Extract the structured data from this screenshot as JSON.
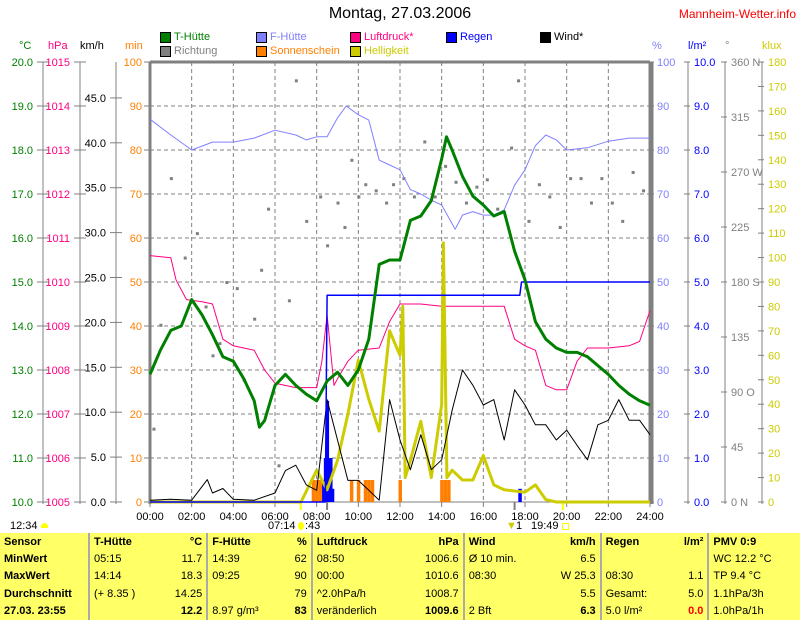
{
  "header": {
    "title": "Montag, 27.03.2006",
    "site": "Mannheim-Wetter.info"
  },
  "axis_headers": {
    "temp": "°C",
    "pressure": "hPa",
    "wind": "km/h",
    "sun": "min",
    "humidity": "%",
    "rain": "l/m²",
    "direction": "°",
    "light": "klux"
  },
  "legend": [
    {
      "label": "T-Hütte",
      "color": "#008000"
    },
    {
      "label": "Richtung",
      "color": "#808080"
    },
    {
      "label": "F-Hütte",
      "color": "#8080ff"
    },
    {
      "label": "Sonnenschein",
      "color": "#ff8000"
    },
    {
      "label": "Luftdruck*",
      "color": "#ff0080"
    },
    {
      "label": "Helligkeit",
      "color": "#cccc00"
    },
    {
      "label": "Regen",
      "color": "#0000ff"
    },
    {
      "label": "Wind*",
      "color": "#000000"
    }
  ],
  "colors": {
    "temp": "#008000",
    "pressure": "#ff0080",
    "wind": "#000000",
    "sun": "#ff8000",
    "humidity": "#8080ff",
    "rain": "#0000ff",
    "direction": "#808080",
    "light": "#cccc00",
    "table_bg": "#ffff66"
  },
  "astro": {
    "moonrise": "12:34",
    "sunrise": "07:14",
    "sunrise_suffix": ":43",
    "moon_mark": "1",
    "sunset": "19:49"
  },
  "chart_data": {
    "type": "line",
    "title": "Montag, 27.03.2006",
    "grid": true,
    "x_ticks": [
      "00:00",
      "02:00",
      "04:00",
      "06:00",
      "08:00",
      "10:00",
      "12:00",
      "14:00",
      "16:00",
      "18:00",
      "20:00",
      "22:00",
      "24:00"
    ],
    "xlim": [
      "00:00",
      "24:00"
    ],
    "axes": {
      "temp": {
        "label": "°C",
        "range": [
          10,
          20
        ],
        "ticks": [
          "10.0",
          "11.0",
          "12.0",
          "13.0",
          "14.0",
          "15.0",
          "16.0",
          "17.0",
          "18.0",
          "19.0",
          "20.0"
        ]
      },
      "pressure": {
        "label": "hPa",
        "range": [
          1005,
          1015
        ],
        "ticks": [
          "1005",
          "1006",
          "1007",
          "1008",
          "1009",
          "1010",
          "1011",
          "1012",
          "1013",
          "1014",
          "1015"
        ]
      },
      "wind": {
        "label": "km/h",
        "range": [
          0,
          49
        ],
        "ticks": [
          "0.0",
          "5.0",
          "10.0",
          "15.0",
          "20.0",
          "25.0",
          "30.0",
          "35.0",
          "40.0",
          "45.0"
        ]
      },
      "sun": {
        "label": "min",
        "range": [
          0,
          100
        ],
        "ticks": [
          "0",
          "10",
          "20",
          "30",
          "40",
          "50",
          "60",
          "70",
          "80",
          "90",
          "100"
        ]
      },
      "humidity": {
        "label": "%",
        "range": [
          0,
          100
        ],
        "ticks": [
          "0",
          "10",
          "20",
          "30",
          "40",
          "50",
          "60",
          "70",
          "80",
          "90",
          "100"
        ]
      },
      "rain": {
        "label": "l/m²",
        "range": [
          0,
          10
        ],
        "ticks": [
          "0.0",
          "1.0",
          "2.0",
          "3.0",
          "4.0",
          "5.0",
          "6.0",
          "7.0",
          "8.0",
          "9.0",
          "10.0"
        ]
      },
      "direction": {
        "label": "°",
        "range": [
          0,
          360
        ],
        "ticks": [
          "0  N",
          "45",
          "90  O",
          "135",
          "180 S",
          "225",
          "270 W",
          "315",
          "360 N"
        ]
      },
      "light": {
        "label": "klux",
        "range": [
          0,
          180
        ],
        "ticks": [
          "0",
          "10",
          "20",
          "30",
          "40",
          "50",
          "60",
          "70",
          "80",
          "90",
          "100",
          "110",
          "120",
          "130",
          "140",
          "150",
          "160",
          "170",
          "180"
        ]
      }
    },
    "series": [
      {
        "name": "T-Hütte",
        "axis": "temp",
        "x": [
          "00:00",
          "00:30",
          "01:00",
          "01:30",
          "02:00",
          "02:30",
          "03:00",
          "03:30",
          "04:00",
          "04:30",
          "05:00",
          "05:15",
          "05:30",
          "06:00",
          "06:30",
          "07:00",
          "07:30",
          "08:00",
          "08:30",
          "09:00",
          "09:30",
          "10:00",
          "10:30",
          "11:00",
          "11:30",
          "12:00",
          "12:30",
          "13:00",
          "13:30",
          "14:00",
          "14:14",
          "14:30",
          "15:00",
          "15:30",
          "16:00",
          "16:30",
          "17:00",
          "17:30",
          "18:00",
          "18:30",
          "19:00",
          "19:30",
          "20:00",
          "20:30",
          "21:00",
          "21:30",
          "22:00",
          "22:30",
          "23:00",
          "23:30",
          "24:00"
        ],
        "y": [
          12.9,
          13.45,
          13.9,
          14.0,
          14.6,
          14.25,
          13.8,
          13.3,
          13.2,
          12.8,
          12.3,
          11.7,
          11.85,
          12.65,
          12.9,
          12.65,
          12.45,
          12.3,
          12.75,
          12.95,
          12.65,
          13.0,
          13.7,
          15.4,
          15.5,
          15.5,
          16.4,
          16.5,
          16.85,
          17.8,
          18.3,
          18.0,
          17.4,
          16.95,
          16.75,
          16.5,
          16.6,
          15.7,
          15.05,
          14.1,
          13.7,
          13.5,
          13.4,
          13.4,
          13.3,
          13.1,
          12.9,
          12.65,
          12.45,
          12.3,
          12.2
        ]
      },
      {
        "name": "F-Hütte",
        "axis": "humidity",
        "x": [
          "00:00",
          "01:00",
          "02:00",
          "03:00",
          "04:00",
          "05:00",
          "06:00",
          "07:00",
          "07:30",
          "08:00",
          "08:30",
          "09:00",
          "09:25",
          "10:00",
          "10:30",
          "11:00",
          "11:30",
          "12:00",
          "12:30",
          "13:00",
          "13:30",
          "14:00",
          "14:39",
          "15:00",
          "15:30",
          "16:00",
          "16:30",
          "17:00",
          "17:30",
          "18:00",
          "18:30",
          "19:00",
          "19:30",
          "20:00",
          "21:00",
          "22:00",
          "23:00",
          "24:00"
        ],
        "y": [
          87,
          83.4,
          80,
          81.8,
          81.8,
          82.7,
          84.5,
          83.4,
          82.3,
          83,
          83,
          87.3,
          90,
          88,
          86.8,
          77.7,
          76.6,
          75.5,
          71,
          70,
          68.6,
          67.5,
          62,
          65.2,
          66,
          65.2,
          65.2,
          66.4,
          72,
          75.5,
          81,
          83.4,
          82.3,
          80,
          80.5,
          82,
          82.7,
          82.7
        ]
      },
      {
        "name": "Luftdruck*",
        "axis": "pressure",
        "x": [
          "00:00",
          "01:00",
          "01:15",
          "01:45",
          "02:30",
          "03:00",
          "03:30",
          "04:00",
          "05:00",
          "05:30",
          "06:00",
          "07:00",
          "08:00",
          "08:15",
          "08:30",
          "08:50",
          "09:00",
          "09:30",
          "10:00",
          "11:00",
          "11:30",
          "12:00",
          "13:00",
          "14:00",
          "16:00",
          "17:00",
          "17:30",
          "18:00",
          "18:30",
          "19:00",
          "19:30",
          "20:00",
          "20:30",
          "21:00",
          "22:00",
          "23:00",
          "23:30",
          "24:00"
        ],
        "y": [
          1010.6,
          1010.55,
          1010.05,
          1009.6,
          1009.55,
          1009.5,
          1008.7,
          1008.55,
          1008.45,
          1008.0,
          1007.7,
          1007.6,
          1007.6,
          1008.2,
          1009.25,
          1007.65,
          1007.8,
          1008.2,
          1008.45,
          1008.5,
          1009.1,
          1009.5,
          1009.5,
          1009.45,
          1009.45,
          1009.45,
          1008.7,
          1008.55,
          1008.45,
          1007.65,
          1007.55,
          1007.55,
          1008.2,
          1008.5,
          1008.5,
          1008.55,
          1008.65,
          1009.35
        ]
      },
      {
        "name": "Wind*",
        "axis": "wind",
        "x": [
          "00:00",
          "01:00",
          "02:00",
          "02:45",
          "03:00",
          "03:30",
          "04:00",
          "05:00",
          "06:00",
          "06:30",
          "07:00",
          "07:30",
          "08:00",
          "08:30",
          "09:00",
          "09:30",
          "10:00",
          "10:30",
          "11:00",
          "11:30",
          "12:00",
          "12:30",
          "13:00",
          "13:30",
          "14:00",
          "14:30",
          "15:00",
          "15:30",
          "16:00",
          "16:30",
          "17:00",
          "17:30",
          "18:00",
          "18:30",
          "19:00",
          "19:30",
          "20:00",
          "20:30",
          "21:00",
          "21:30",
          "22:00",
          "22:30",
          "23:00",
          "23:30",
          "24:00"
        ],
        "y": [
          0.2,
          0.3,
          0.2,
          2.5,
          1.0,
          1.5,
          0.3,
          0.2,
          1.0,
          3.5,
          4.1,
          1.9,
          1.3,
          11.4,
          6.9,
          2.4,
          2.4,
          1.3,
          0.2,
          11.4,
          6.9,
          3.6,
          7.5,
          3.6,
          4.7,
          10.2,
          14.7,
          13.0,
          10.8,
          11.4,
          6.9,
          12.5,
          10.8,
          8.6,
          8.6,
          6.9,
          8.0,
          6.3,
          4.7,
          8.6,
          9.1,
          11.4,
          9.1,
          9.1,
          7.5
        ]
      },
      {
        "name": "Regen",
        "axis": "rain",
        "x": [
          "00:00",
          "08:25",
          "08:30",
          "17:45",
          "17:50",
          "24:00"
        ],
        "y": [
          0,
          0,
          4.7,
          4.7,
          5.0,
          5.0
        ]
      },
      {
        "name": "Helligkeit",
        "axis": "light",
        "x": [
          "00:00",
          "07:15",
          "08:00",
          "08:30",
          "09:00",
          "09:30",
          "10:00",
          "10:30",
          "11:00",
          "11:30",
          "12:00",
          "12:08",
          "12:15",
          "12:30",
          "13:00",
          "13:30",
          "14:00",
          "14:05",
          "14:15",
          "14:30",
          "15:00",
          "15:30",
          "16:00",
          "16:30",
          "17:00",
          "18:00",
          "18:30",
          "19:00",
          "19:30",
          "24:00"
        ],
        "y": [
          0,
          0,
          13,
          5,
          17,
          36,
          58,
          42,
          29,
          70,
          60,
          80,
          10,
          17,
          33,
          10,
          40,
          106,
          10,
          13,
          9,
          9,
          19,
          7,
          5,
          4,
          7,
          1,
          0,
          0
        ]
      }
    ],
    "bars": [
      {
        "name": "Sonnenschein",
        "axis": "sun",
        "x": [
          "07:50",
          "08:00",
          "08:10",
          "08:20",
          "09:40",
          "10:00",
          "10:20",
          "10:30",
          "10:40",
          "12:00",
          "14:00",
          "14:10",
          "14:20"
        ],
        "y": [
          5,
          5,
          5,
          5,
          5,
          5,
          5,
          5,
          5,
          5,
          5,
          5,
          5
        ]
      },
      {
        "name": "Regen-Intensität",
        "axis": "rain",
        "x": [
          "08:20",
          "08:25",
          "08:30",
          "08:35",
          "08:40",
          "08:45",
          "17:45"
        ],
        "y": [
          0.5,
          1.0,
          2.3,
          1.0,
          1.0,
          0.3,
          0.3
        ]
      }
    ],
    "scatter": {
      "name": "Richtung",
      "axis": "direction",
      "x": [
        "00:10",
        "00:30",
        "01:00",
        "01:40",
        "02:15",
        "02:40",
        "03:00",
        "03:20",
        "03:40",
        "04:10",
        "04:30",
        "05:00",
        "05:20",
        "05:40",
        "06:10",
        "06:40",
        "07:00",
        "07:30",
        "08:10",
        "08:30",
        "09:00",
        "09:20",
        "09:40",
        "10:00",
        "10:20",
        "10:50",
        "11:20",
        "11:40",
        "12:10",
        "12:40",
        "13:10",
        "13:40",
        "14:10",
        "14:40",
        "15:10",
        "15:40",
        "16:10",
        "16:40",
        "17:20",
        "17:40",
        "18:10",
        "18:40",
        "19:10",
        "19:40",
        "20:10",
        "20:40",
        "21:10",
        "21:40",
        "22:10",
        "22:40",
        "23:10",
        "23:40"
      ],
      "y": [
        60,
        145,
        265,
        200,
        220,
        160,
        120,
        130,
        180,
        175,
        100,
        150,
        190,
        240,
        30,
        165,
        345,
        230,
        250,
        210,
        245,
        225,
        280,
        250,
        260,
        255,
        245,
        260,
        265,
        250,
        295,
        250,
        275,
        262,
        245,
        258,
        264,
        240,
        290,
        345,
        230,
        260,
        250,
        225,
        265,
        265,
        245,
        265,
        245,
        230,
        270,
        255
      ]
    }
  },
  "table": {
    "sensor": {
      "h": "Sensor",
      "r1": "MinWert",
      "r2": "MaxWert",
      "r3": "Durchschnitt",
      "r4": "27.03. 23:55"
    },
    "temp": {
      "h": "T-Hütte",
      "u": "°C",
      "r1a": "05:15",
      "r1b": "11.7",
      "r2a": "14:14",
      "r2b": "18.3",
      "r3a": "(+ 8.35 )",
      "r3b": "14.25",
      "r4a": "",
      "r4b": "12.2"
    },
    "hum": {
      "h": "F-Hütte",
      "u": "%",
      "r1a": "14:39",
      "r1b": "62",
      "r2a": "09:25",
      "r2b": "90",
      "r3a": "",
      "r3b": "79",
      "r4a": "8.97 g/m³",
      "r4b": "83"
    },
    "press": {
      "h": "Luftdruck",
      "u": "hPa",
      "r1a": "08:50",
      "r1b": "1006.6",
      "r2a": "00:00",
      "r2b": "1010.6",
      "r3a": "^2.0hPa/h",
      "r3b": "1008.7",
      "r4a": "veränderlich",
      "r4b": "1009.6"
    },
    "wind": {
      "h": "Wind",
      "u": "km/h",
      "r1a": "Ø 10 min.",
      "r1b": "6.5",
      "r2a": "08:30",
      "r2b": "W 25.3",
      "r3a": "",
      "r3b": "5.5",
      "r4a": "2 Bft",
      "r4b": "6.3"
    },
    "rain": {
      "h": "Regen",
      "u": "l/m²",
      "r1a": "",
      "r1b": "",
      "r2a": "08:30",
      "r2b": "1.1",
      "r3a": "Gesamt:",
      "r3b": "5.0",
      "r4a": "5.0 l/m²",
      "r4b": "0.0"
    },
    "pmv": {
      "h": "PMV 0:9",
      "r1": "WC 12.2 °C",
      "r2": "TP 9.4 °C",
      "r3": "1.1hPa/3h",
      "r4": "1.0hPa/1h"
    }
  }
}
